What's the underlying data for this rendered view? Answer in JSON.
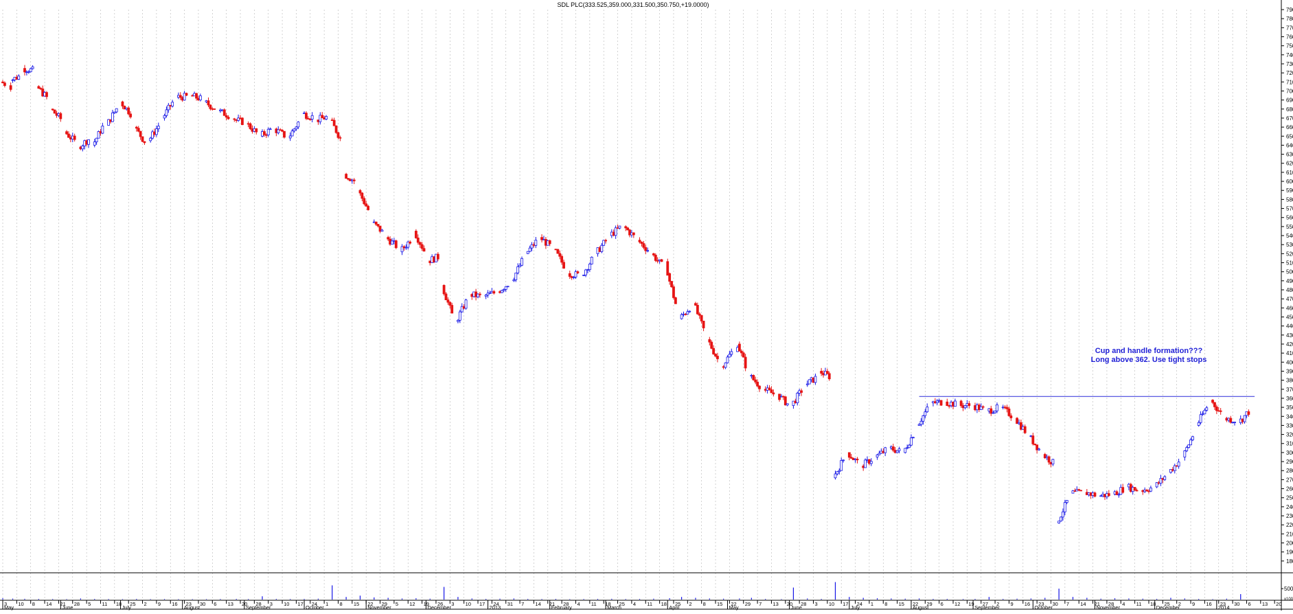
{
  "chart_data": {
    "type": "candlestick",
    "title": "SDL PLC(333.525,359.000,331.500,350.750,+19.0000)",
    "ylim": [
      170,
      790
    ],
    "y_tick_step": 10,
    "volume_ylim": [
      0,
      110000
    ],
    "volume_tick_labels": [
      "50000",
      "x1000"
    ],
    "grid": true,
    "colors": {
      "up": "#1414e6",
      "down": "#e61414",
      "line": "#2b2bd9",
      "annotation": "#1f1fd6",
      "grid": "#b5b5b5"
    },
    "date_start": "2012-05-03",
    "date_end": "2014-01-21",
    "day_labels": [
      "3",
      "10",
      "8",
      "14",
      "21",
      "28",
      "5",
      "11",
      "18",
      "25",
      "2",
      "9",
      "16",
      "23",
      "30",
      "6",
      "13",
      "20",
      "28",
      "3",
      "10",
      "17",
      "24",
      "1",
      "8",
      "15",
      "22",
      "29",
      "5",
      "12",
      "19",
      "26",
      "3",
      "10",
      "17",
      "24",
      "31",
      "7",
      "14",
      "21",
      "28",
      "4",
      "11",
      "18",
      "25",
      "4",
      "11",
      "18",
      "25",
      "2",
      "8",
      "15",
      "22",
      "29",
      "7",
      "13",
      "20",
      "28",
      "3",
      "10",
      "17",
      "24",
      "1",
      "8",
      "15",
      "22",
      "29",
      "6",
      "12",
      "19",
      "27",
      "2",
      "9",
      "16",
      "23",
      "30",
      "7",
      "14",
      "21",
      "28",
      "4",
      "11",
      "18",
      "25",
      "2",
      "9",
      "16",
      "23",
      "30",
      "6",
      "13",
      "20"
    ],
    "month_labels": [
      "May",
      "June",
      "July",
      "August",
      "September",
      "October",
      "November",
      "December",
      "2013",
      "February",
      "March",
      "April",
      "May",
      "June",
      "July",
      "August",
      "September",
      "October",
      "November",
      "December",
      "2014"
    ],
    "series": [
      {
        "values": [
          [
            "2012-05-03",
            710,
            705
          ],
          [
            "2012-05-08",
            712,
            718
          ],
          [
            "2012-05-14",
            725,
            722
          ],
          [
            "2012-05-21",
            705,
            688
          ],
          [
            "2012-05-28",
            680,
            665
          ],
          [
            "2012-06-04",
            655,
            640
          ],
          [
            "2012-06-11",
            638,
            650
          ],
          [
            "2012-06-18",
            640,
            668
          ],
          [
            "2012-06-25",
            662,
            688
          ],
          [
            "2012-07-02",
            688,
            670
          ],
          [
            "2012-07-09",
            660,
            638
          ],
          [
            "2012-07-16",
            645,
            668
          ],
          [
            "2012-07-23",
            670,
            694
          ],
          [
            "2012-07-30",
            693,
            694
          ],
          [
            "2012-08-06",
            695,
            690
          ],
          [
            "2012-08-13",
            688,
            678
          ],
          [
            "2012-08-20",
            678,
            670
          ],
          [
            "2012-08-28",
            668,
            665
          ],
          [
            "2012-09-03",
            664,
            650
          ],
          [
            "2012-09-10",
            650,
            660
          ],
          [
            "2012-09-17",
            658,
            648
          ],
          [
            "2012-09-24",
            648,
            672
          ],
          [
            "2012-10-01",
            675,
            670
          ],
          [
            "2012-10-08",
            668,
            672
          ],
          [
            "2012-10-15",
            668,
            640
          ],
          [
            "2012-10-22",
            608,
            598
          ],
          [
            "2012-10-29",
            590,
            560
          ],
          [
            "2012-11-05",
            555,
            540
          ],
          [
            "2012-11-12",
            538,
            525
          ],
          [
            "2012-11-19",
            522,
            540
          ],
          [
            "2012-11-26",
            545,
            515
          ],
          [
            "2012-12-03",
            512,
            518
          ],
          [
            "2012-12-10",
            485,
            440
          ],
          [
            "2012-12-17",
            445,
            475
          ],
          [
            "2012-12-24",
            475,
            472
          ],
          [
            "2012-12-31",
            473,
            478
          ],
          [
            "2013-01-07",
            478,
            490
          ],
          [
            "2013-01-14",
            490,
            520
          ],
          [
            "2013-01-21",
            520,
            538
          ],
          [
            "2013-01-28",
            538,
            525
          ],
          [
            "2013-02-04",
            525,
            500
          ],
          [
            "2013-02-11",
            498,
            496
          ],
          [
            "2013-02-18",
            496,
            520
          ],
          [
            "2013-02-25",
            520,
            540
          ],
          [
            "2013-03-04",
            540,
            552
          ],
          [
            "2013-03-11",
            550,
            535
          ],
          [
            "2013-03-18",
            535,
            520
          ],
          [
            "2013-03-25",
            520,
            500
          ],
          [
            "2013-04-02",
            498,
            448
          ],
          [
            "2013-04-08",
            448,
            465
          ],
          [
            "2013-04-15",
            465,
            425
          ],
          [
            "2013-04-22",
            425,
            395
          ],
          [
            "2013-04-29",
            395,
            420
          ],
          [
            "2013-05-07",
            420,
            385
          ],
          [
            "2013-05-13",
            385,
            370
          ],
          [
            "2013-05-20",
            370,
            362
          ],
          [
            "2013-05-28",
            362,
            350
          ],
          [
            "2013-06-03",
            352,
            375
          ],
          [
            "2013-06-10",
            375,
            385
          ],
          [
            "2013-06-17",
            390,
            382
          ],
          [
            "2013-06-24",
            272,
            300
          ],
          [
            "2013-07-01",
            300,
            285
          ],
          [
            "2013-07-08",
            285,
            295
          ],
          [
            "2013-07-15",
            295,
            305
          ],
          [
            "2013-07-22",
            305,
            300
          ],
          [
            "2013-07-29",
            300,
            328
          ],
          [
            "2013-08-05",
            330,
            355
          ],
          [
            "2013-08-12",
            355,
            356
          ],
          [
            "2013-08-19",
            356,
            352
          ],
          [
            "2013-08-27",
            352,
            352
          ],
          [
            "2013-09-02",
            352,
            346
          ],
          [
            "2013-09-09",
            346,
            350
          ],
          [
            "2013-09-16",
            350,
            338
          ],
          [
            "2013-09-23",
            338,
            318
          ],
          [
            "2013-09-30",
            318,
            298
          ],
          [
            "2013-10-07",
            298,
            285
          ],
          [
            "2013-10-14",
            222,
            255
          ],
          [
            "2013-10-21",
            255,
            256
          ],
          [
            "2013-10-28",
            256,
            252
          ],
          [
            "2013-11-04",
            252,
            254
          ],
          [
            "2013-11-11",
            254,
            262
          ],
          [
            "2013-11-18",
            262,
            258
          ],
          [
            "2013-11-25",
            258,
            262
          ],
          [
            "2013-12-02",
            262,
            278
          ],
          [
            "2013-12-09",
            278,
            295
          ],
          [
            "2013-12-16",
            295,
            328
          ],
          [
            "2013-12-23",
            330,
            358
          ],
          [
            "2013-12-30",
            358,
            338
          ],
          [
            "2014-01-06",
            338,
            335
          ],
          [
            "2014-01-13",
            333,
            350
          ]
        ]
      }
    ],
    "volume": [
      [
        "2012-05-03",
        6000
      ],
      [
        "2012-05-08",
        4500
      ],
      [
        "2012-05-14",
        3500
      ],
      [
        "2012-05-21",
        3000
      ],
      [
        "2012-05-28",
        2500
      ],
      [
        "2012-06-04",
        2000
      ],
      [
        "2012-06-11",
        5000
      ],
      [
        "2012-06-18",
        3000
      ],
      [
        "2012-06-25",
        2500
      ],
      [
        "2012-07-02",
        2000
      ],
      [
        "2012-07-09",
        3000
      ],
      [
        "2012-07-16",
        2000
      ],
      [
        "2012-07-23",
        2500
      ],
      [
        "2012-07-30",
        2000
      ],
      [
        "2012-08-06",
        2000
      ],
      [
        "2012-08-13",
        2000
      ],
      [
        "2012-08-20",
        2500
      ],
      [
        "2012-08-28",
        3000
      ],
      [
        "2012-09-03",
        2500
      ],
      [
        "2012-09-10",
        15000
      ],
      [
        "2012-09-17",
        3000
      ],
      [
        "2012-09-24",
        2500
      ],
      [
        "2012-10-01",
        3000
      ],
      [
        "2012-10-08",
        4000
      ],
      [
        "2012-10-15",
        65000
      ],
      [
        "2012-10-22",
        12000
      ],
      [
        "2012-10-29",
        18000
      ],
      [
        "2012-11-05",
        10000
      ],
      [
        "2012-11-12",
        8000
      ],
      [
        "2012-11-19",
        5000
      ],
      [
        "2012-11-26",
        6000
      ],
      [
        "2012-12-03",
        4000
      ],
      [
        "2012-12-10",
        58000
      ],
      [
        "2012-12-17",
        12000
      ],
      [
        "2012-12-24",
        5000
      ],
      [
        "2012-12-31",
        3000
      ],
      [
        "2013-01-07",
        4000
      ],
      [
        "2013-01-14",
        5000
      ],
      [
        "2013-01-21",
        3000
      ],
      [
        "2013-01-28",
        2500
      ],
      [
        "2013-02-04",
        3000
      ],
      [
        "2013-02-11",
        2000
      ],
      [
        "2013-02-18",
        2500
      ],
      [
        "2013-02-25",
        3000
      ],
      [
        "2013-03-04",
        3500
      ],
      [
        "2013-03-11",
        2500
      ],
      [
        "2013-03-18",
        3000
      ],
      [
        "2013-03-25",
        4000
      ],
      [
        "2013-04-02",
        6000
      ],
      [
        "2013-04-08",
        12000
      ],
      [
        "2013-04-15",
        8000
      ],
      [
        "2013-04-22",
        5000
      ],
      [
        "2013-04-29",
        4000
      ],
      [
        "2013-05-07",
        5000
      ],
      [
        "2013-05-13",
        8000
      ],
      [
        "2013-05-20",
        3000
      ],
      [
        "2013-05-28",
        2000
      ],
      [
        "2013-06-03",
        55000
      ],
      [
        "2013-06-10",
        5000
      ],
      [
        "2013-06-17",
        3000
      ],
      [
        "2013-06-24",
        80000
      ],
      [
        "2013-07-01",
        12000
      ],
      [
        "2013-07-08",
        8000
      ],
      [
        "2013-07-15",
        6000
      ],
      [
        "2013-07-22",
        5000
      ],
      [
        "2013-07-29",
        4000
      ],
      [
        "2013-08-05",
        5000
      ],
      [
        "2013-08-12",
        3000
      ],
      [
        "2013-08-19",
        3000
      ],
      [
        "2013-08-27",
        2500
      ],
      [
        "2013-09-02",
        3000
      ],
      [
        "2013-09-09",
        12000
      ],
      [
        "2013-09-16",
        3000
      ],
      [
        "2013-09-23",
        4000
      ],
      [
        "2013-09-30",
        5000
      ],
      [
        "2013-10-07",
        8000
      ],
      [
        "2013-10-14",
        50000
      ],
      [
        "2013-10-21",
        12000
      ],
      [
        "2013-10-28",
        8000
      ],
      [
        "2013-11-04",
        4000
      ],
      [
        "2013-11-11",
        6000
      ],
      [
        "2013-11-18",
        5000
      ],
      [
        "2013-11-25",
        4000
      ],
      [
        "2013-12-02",
        3000
      ],
      [
        "2013-12-09",
        8000
      ],
      [
        "2013-12-16",
        5000
      ],
      [
        "2013-12-23",
        3000
      ],
      [
        "2013-12-30",
        2000
      ],
      [
        "2014-01-06",
        4000
      ],
      [
        "2014-01-13",
        25000
      ]
    ],
    "reference_line": {
      "y": 362,
      "x_start": "2013-08-05",
      "x_end": "2014-01-20"
    },
    "annotation": {
      "lines": [
        "Cup and handle formation???",
        "Long above 362. Use tight stops"
      ],
      "x": "2013-11-28",
      "y": 410
    }
  }
}
